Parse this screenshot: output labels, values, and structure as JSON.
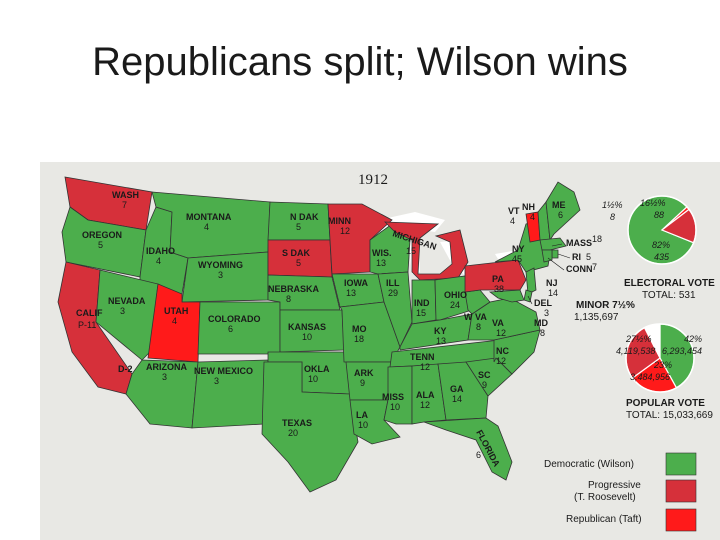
{
  "title": "Republicans split; Wilson wins",
  "year": "1912",
  "colors": {
    "democratic": "#4cae4c",
    "progressive": "#d6303a",
    "republican": "#ff1a1a",
    "background": "#e8e8e4"
  },
  "states": [
    {
      "abbr": "WASH",
      "votes": "7",
      "party": "progressive"
    },
    {
      "abbr": "OREGON",
      "votes": "5",
      "party": "democratic"
    },
    {
      "abbr": "CALIF",
      "votes": "P-11",
      "party": "progressive"
    },
    {
      "abbr": "D-2",
      "votes": "",
      "party": "democratic"
    },
    {
      "abbr": "IDAHO",
      "votes": "4",
      "party": "democratic"
    },
    {
      "abbr": "NEVADA",
      "votes": "3",
      "party": "democratic"
    },
    {
      "abbr": "MONTANA",
      "votes": "4",
      "party": "democratic"
    },
    {
      "abbr": "WYOMING",
      "votes": "3",
      "party": "democratic"
    },
    {
      "abbr": "UTAH",
      "votes": "4",
      "party": "republican"
    },
    {
      "abbr": "COLORADO",
      "votes": "6",
      "party": "democratic"
    },
    {
      "abbr": "ARIZONA",
      "votes": "3",
      "party": "democratic"
    },
    {
      "abbr": "NEW MEXICO",
      "votes": "3",
      "party": "democratic"
    },
    {
      "abbr": "N DAK",
      "votes": "5",
      "party": "democratic"
    },
    {
      "abbr": "S DAK",
      "votes": "5",
      "party": "progressive"
    },
    {
      "abbr": "NEBRASKA",
      "votes": "8",
      "party": "democratic"
    },
    {
      "abbr": "KANSAS",
      "votes": "10",
      "party": "democratic"
    },
    {
      "abbr": "OKLA",
      "votes": "10",
      "party": "democratic"
    },
    {
      "abbr": "TEXAS",
      "votes": "20",
      "party": "democratic"
    },
    {
      "abbr": "MINN",
      "votes": "12",
      "party": "progressive"
    },
    {
      "abbr": "IOWA",
      "votes": "13",
      "party": "democratic"
    },
    {
      "abbr": "MO",
      "votes": "18",
      "party": "democratic"
    },
    {
      "abbr": "ARK",
      "votes": "9",
      "party": "democratic"
    },
    {
      "abbr": "LA",
      "votes": "10",
      "party": "democratic"
    },
    {
      "abbr": "WIS.",
      "votes": "13",
      "party": "democratic"
    },
    {
      "abbr": "ILL",
      "votes": "29",
      "party": "democratic"
    },
    {
      "abbr": "MICHIGAN",
      "votes": "15",
      "party": "progressive"
    },
    {
      "abbr": "IND",
      "votes": "15",
      "party": "democratic"
    },
    {
      "abbr": "OHIO",
      "votes": "24",
      "party": "democratic"
    },
    {
      "abbr": "KY",
      "votes": "13",
      "party": "democratic"
    },
    {
      "abbr": "TENN",
      "votes": "12",
      "party": "democratic"
    },
    {
      "abbr": "MISS",
      "votes": "10",
      "party": "democratic"
    },
    {
      "abbr": "ALA",
      "votes": "12",
      "party": "democratic"
    },
    {
      "abbr": "GA",
      "votes": "14",
      "party": "democratic"
    },
    {
      "abbr": "FLORIDA",
      "votes": "6",
      "party": "democratic"
    },
    {
      "abbr": "SC",
      "votes": "9",
      "party": "democratic"
    },
    {
      "abbr": "NC",
      "votes": "12",
      "party": "democratic"
    },
    {
      "abbr": "VA",
      "votes": "12",
      "party": "democratic"
    },
    {
      "abbr": "W VA",
      "votes": "8",
      "party": "democratic"
    },
    {
      "abbr": "PA",
      "votes": "38",
      "party": "progressive"
    },
    {
      "abbr": "NY",
      "votes": "45",
      "party": "democratic"
    },
    {
      "abbr": "VT",
      "votes": "4",
      "party": "republican"
    },
    {
      "abbr": "NH",
      "votes": "4",
      "party": "democratic"
    },
    {
      "abbr": "ME",
      "votes": "6",
      "party": "democratic"
    },
    {
      "abbr": "MASS",
      "votes": "18",
      "party": "democratic"
    },
    {
      "abbr": "RI",
      "votes": "5",
      "party": "democratic"
    },
    {
      "abbr": "CONN",
      "votes": "7",
      "party": "democratic"
    },
    {
      "abbr": "NJ",
      "votes": "14",
      "party": "democratic"
    },
    {
      "abbr": "DEL",
      "votes": "3",
      "party": "democratic"
    },
    {
      "abbr": "MD",
      "votes": "8",
      "party": "democratic"
    }
  ],
  "electoral_vote": {
    "heading": "ELECTORAL VOTE",
    "total_label": "TOTAL: 531",
    "slices": [
      {
        "party": "democratic",
        "pct_label": "82%",
        "count_label": "435",
        "fraction": 0.82
      },
      {
        "party": "progressive",
        "pct_label": "16½%",
        "count_label": "88",
        "fraction": 0.165
      },
      {
        "party": "republican",
        "pct_label": "1½%",
        "count_label": "8",
        "fraction": 0.015
      }
    ]
  },
  "popular_vote": {
    "heading": "POPULAR VOTE",
    "total_label": "TOTAL: 15,033,669",
    "minor_label": "MINOR 7½%",
    "minor_count": "1,135,697",
    "slices": [
      {
        "party": "democratic",
        "pct_label": "42%",
        "count_label": "6,293,454",
        "fraction": 0.42
      },
      {
        "party": "republican",
        "pct_label": "23%",
        "count_label": "3,484,956",
        "fraction": 0.23
      },
      {
        "party": "progressive",
        "pct_label": "27½%",
        "count_label": "4,119,538",
        "fraction": 0.275
      },
      {
        "party": "minor",
        "pct_label": "",
        "count_label": "",
        "fraction": 0.075
      }
    ]
  },
  "legend": [
    {
      "label_lines": [
        "Democratic (Wilson)"
      ],
      "party": "democratic"
    },
    {
      "label_lines": [
        "Progressive",
        "(T. Roosevelt)"
      ],
      "party": "progressive"
    },
    {
      "label_lines": [
        "Republican (Taft)"
      ],
      "party": "republican"
    }
  ]
}
